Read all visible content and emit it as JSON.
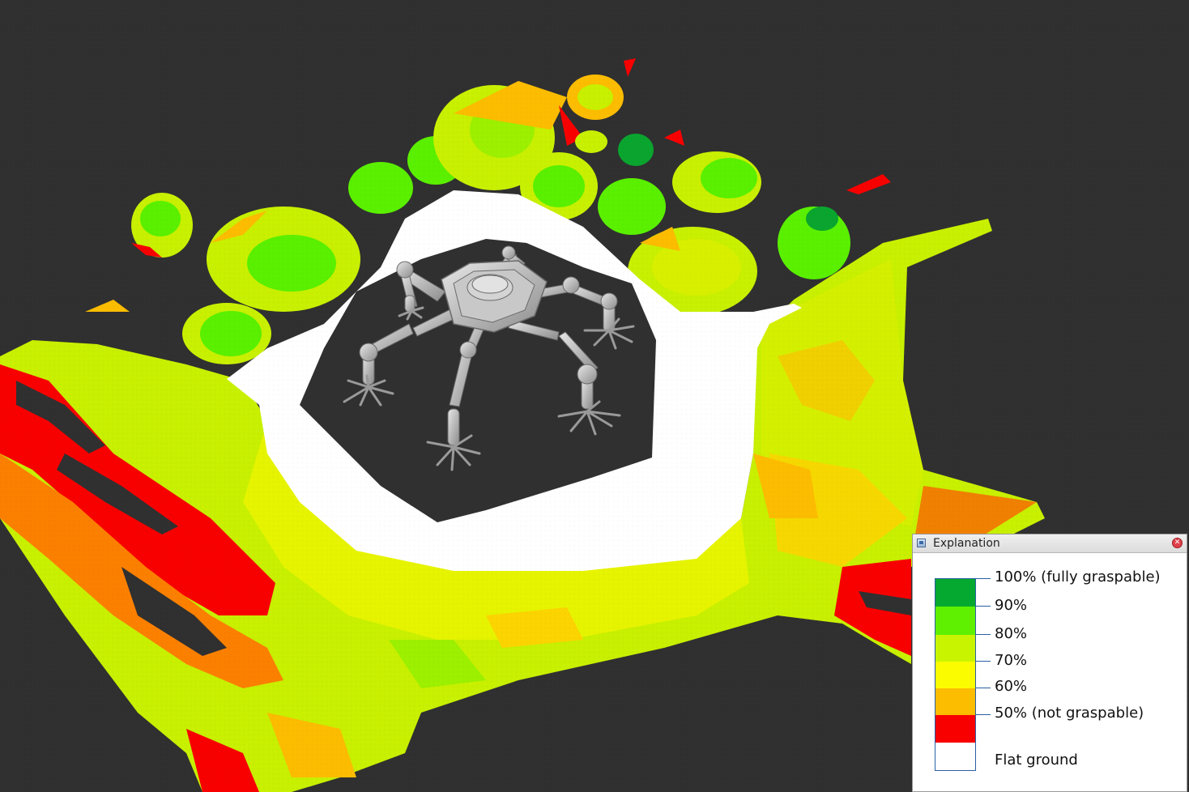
{
  "viewer": {
    "background": "#303030",
    "map_colors": {
      "fully_graspable": "#0aa52f",
      "p90": "#5af000",
      "p80": "#c8f000",
      "p70": "#fcfc00",
      "p60": "#fcbc00",
      "not_graspable": "#f80000",
      "flat_ground": "#ffffff"
    }
  },
  "explanation_panel": {
    "title": "Explanation",
    "icon": "window-icon",
    "close_icon": "close-icon",
    "legend": [
      {
        "label": "100% (fully graspable)",
        "color": "#05a92f"
      },
      {
        "label": "90%",
        "color": "#5ef000"
      },
      {
        "label": "80%",
        "color": "#c9f400"
      },
      {
        "label": "70%",
        "color": "#fcfc00"
      },
      {
        "label": "60%",
        "color": "#fcbc00"
      },
      {
        "label": "50% (not graspable)",
        "color": "#f80000"
      },
      {
        "label": "Flat ground",
        "color": "#ffffff"
      }
    ]
  }
}
